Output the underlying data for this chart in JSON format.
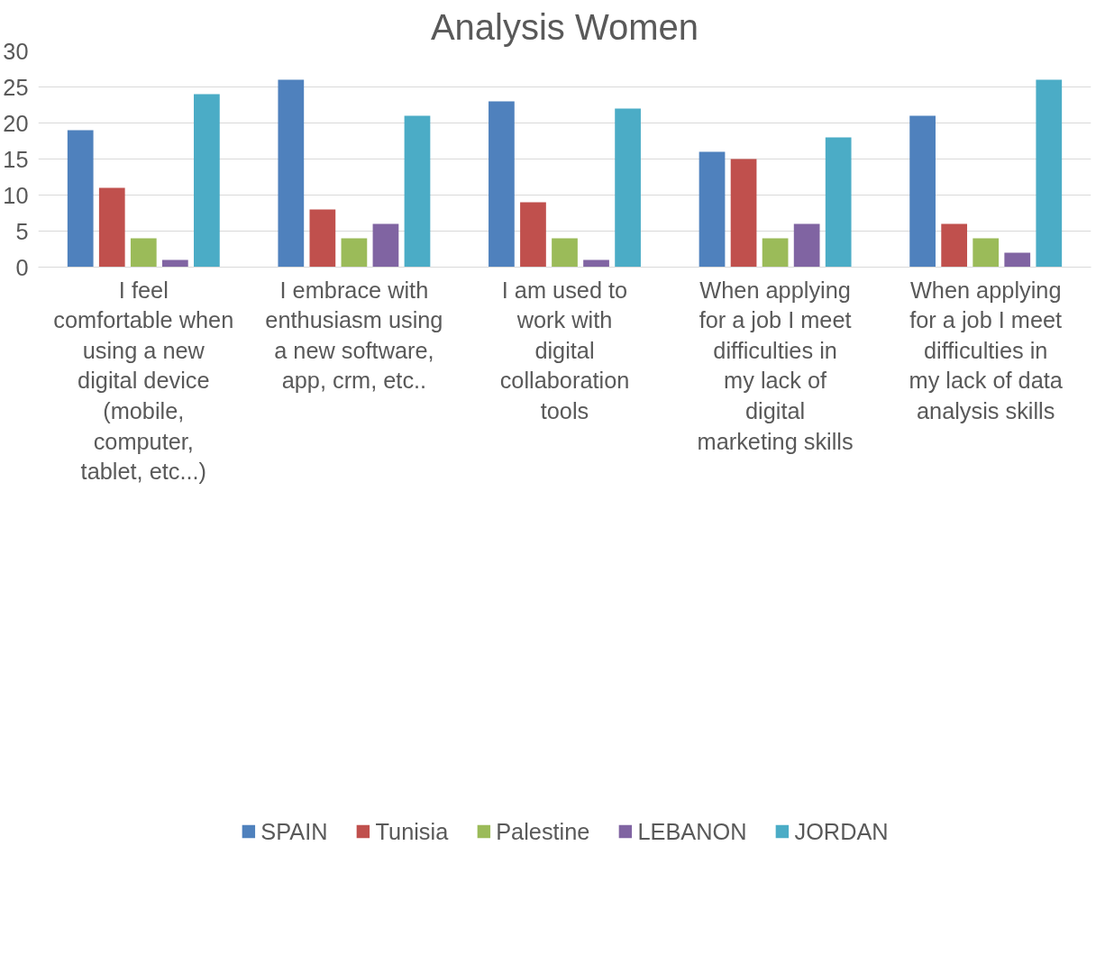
{
  "chart_data": {
    "type": "bar",
    "title": "Analysis Women",
    "categories": [
      "I feel comfortable when using a new digital device (mobile, computer, tablet, etc...)",
      "I embrace with enthusiasm using a new software, app, crm, etc..",
      "I am used to work with digital collaboration tools",
      "When applying for a job I meet difficulties in my lack of digital marketing skills",
      "When applying for a job I meet difficulties in my lack of data analysis skills"
    ],
    "series": [
      {
        "name": "SPAIN",
        "color": "#4f81bd",
        "values": [
          19,
          26,
          23,
          16,
          21
        ]
      },
      {
        "name": "Tunisia",
        "color": "#c0504d",
        "values": [
          11,
          8,
          9,
          15,
          6
        ]
      },
      {
        "name": "Palestine",
        "color": "#9bbb59",
        "values": [
          4,
          4,
          4,
          4,
          4
        ]
      },
      {
        "name": "LEBANON",
        "color": "#8064a2",
        "values": [
          1,
          6,
          1,
          6,
          2
        ]
      },
      {
        "name": "JORDAN",
        "color": "#4bacc6",
        "values": [
          24,
          21,
          22,
          18,
          26
        ]
      }
    ],
    "ylim": [
      0,
      30
    ],
    "yticks": [
      0,
      5,
      10,
      15,
      20,
      25,
      30
    ],
    "grid": "y",
    "legend": "bottom"
  }
}
